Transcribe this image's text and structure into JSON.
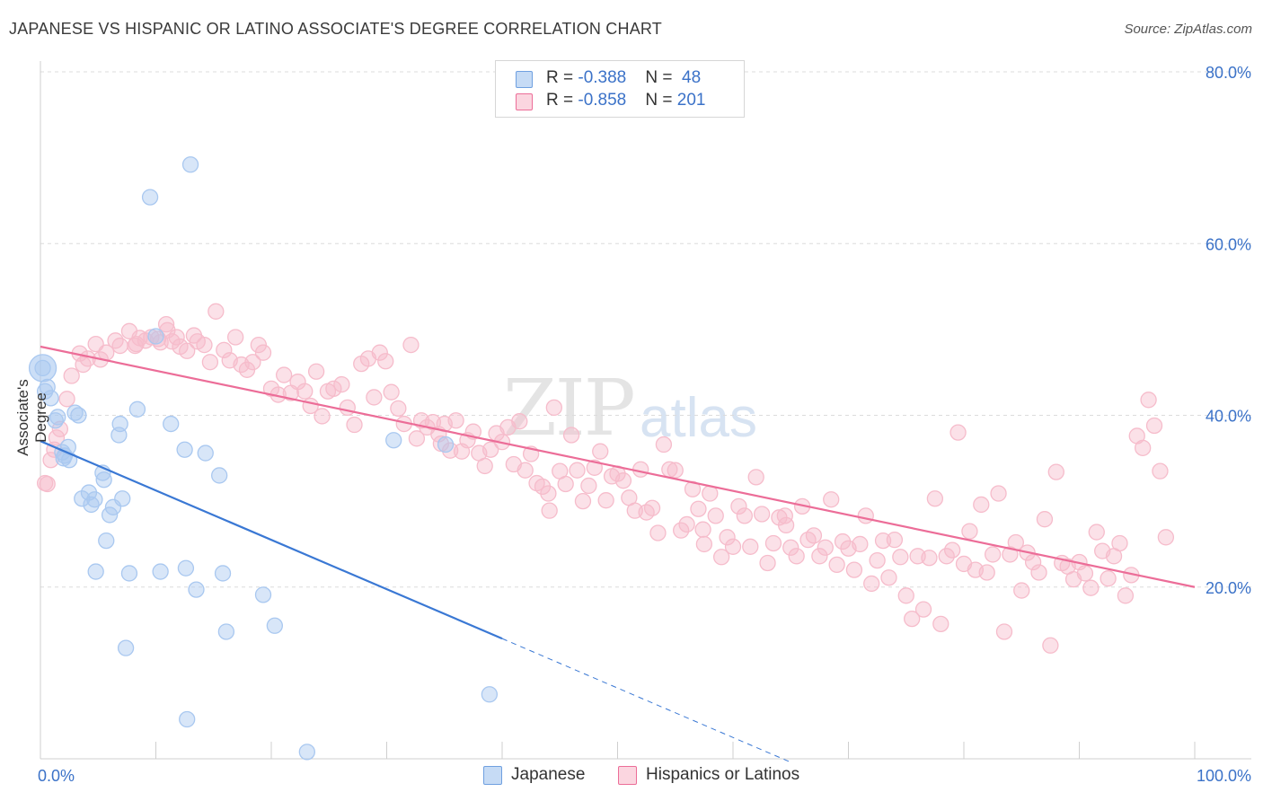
{
  "title": "JAPANESE VS HISPANIC OR LATINO ASSOCIATE'S DEGREE CORRELATION CHART",
  "source": "Source: ZipAtlas.com",
  "watermark": {
    "zip": "ZIP",
    "atlas": "atlas"
  },
  "legend_top": [
    {
      "r_label": "R = ",
      "r_value": "-0.388",
      "n_label": "N = ",
      "n_value": " 48",
      "color": "#a9c8f0"
    },
    {
      "r_label": "R = ",
      "r_value": "-0.858",
      "n_label": "N = ",
      "n_value": "201",
      "color": "#f6bccb"
    }
  ],
  "legend_bottom": [
    {
      "label": "Japanese",
      "color": "#a9c8f0"
    },
    {
      "label": "Hispanics or Latinos",
      "color": "#f6bccb"
    }
  ],
  "chart_data": {
    "type": "scatter",
    "title": "JAPANESE VS HISPANIC OR LATINO ASSOCIATE'S DEGREE CORRELATION CHART",
    "xlabel": "",
    "ylabel": "Associate's Degree",
    "xlim": [
      0,
      100
    ],
    "ylim": [
      0,
      80
    ],
    "x_tick_labels": [
      "0.0%",
      "100.0%"
    ],
    "y_ticks": [
      20,
      40,
      60,
      80
    ],
    "y_tick_labels": [
      "20.0%",
      "40.0%",
      "60.0%",
      "80.0%"
    ],
    "grid": true,
    "legend_position": "bottom",
    "series": [
      {
        "name": "Japanese",
        "color": "#6fa0e0",
        "fill": "#a9c8f0",
        "r": -0.388,
        "n": 48,
        "trend": {
          "x0": 0,
          "y0": 37.0,
          "x1": 40,
          "y1": 14.0,
          "dash_to_x": 65,
          "dash_to_y": -0.4
        },
        "points": [
          [
            0.2,
            45.5
          ],
          [
            0.6,
            43.3
          ],
          [
            0.9,
            42.0
          ],
          [
            1.3,
            39.4
          ],
          [
            1.5,
            39.8
          ],
          [
            1.9,
            35.7
          ],
          [
            2.0,
            35.0
          ],
          [
            2.4,
            36.3
          ],
          [
            2.5,
            34.8
          ],
          [
            3.3,
            40.0
          ],
          [
            3.6,
            30.3
          ],
          [
            4.2,
            31.0
          ],
          [
            4.4,
            29.6
          ],
          [
            4.7,
            30.2
          ],
          [
            4.8,
            21.8
          ],
          [
            5.4,
            33.3
          ],
          [
            5.5,
            32.5
          ],
          [
            5.7,
            25.4
          ],
          [
            6.0,
            28.4
          ],
          [
            6.8,
            37.7
          ],
          [
            6.9,
            39.0
          ],
          [
            7.1,
            30.3
          ],
          [
            7.4,
            12.9
          ],
          [
            7.7,
            21.6
          ],
          [
            8.4,
            40.7
          ],
          [
            9.5,
            65.4
          ],
          [
            10.0,
            49.2
          ],
          [
            10.4,
            21.8
          ],
          [
            11.3,
            39.0
          ],
          [
            12.5,
            36.0
          ],
          [
            12.6,
            22.2
          ],
          [
            12.7,
            4.6
          ],
          [
            13.0,
            69.2
          ],
          [
            13.5,
            19.7
          ],
          [
            14.3,
            35.6
          ],
          [
            15.5,
            33.0
          ],
          [
            15.8,
            21.6
          ],
          [
            16.1,
            14.8
          ],
          [
            19.3,
            19.1
          ],
          [
            20.3,
            15.5
          ],
          [
            23.1,
            0.8
          ],
          [
            30.6,
            37.1
          ],
          [
            35.1,
            36.6
          ],
          [
            38.9,
            7.5
          ],
          [
            0.4,
            42.8
          ],
          [
            2.1,
            35.3
          ],
          [
            3.0,
            40.3
          ],
          [
            6.3,
            29.3
          ]
        ]
      },
      {
        "name": "Hispanics or Latinos",
        "color": "#ec6d98",
        "fill": "#f6bccb",
        "r": -0.858,
        "n": 201,
        "trend": {
          "x0": 0,
          "y0": 48.0,
          "x1": 100,
          "y1": 20.0
        },
        "points": [
          [
            0.4,
            32.1
          ],
          [
            0.9,
            34.8
          ],
          [
            1.4,
            37.4
          ],
          [
            2.3,
            41.9
          ],
          [
            2.7,
            44.6
          ],
          [
            3.4,
            47.2
          ],
          [
            3.7,
            45.9
          ],
          [
            4.1,
            46.6
          ],
          [
            4.8,
            48.3
          ],
          [
            5.2,
            46.5
          ],
          [
            5.7,
            47.3
          ],
          [
            6.5,
            48.7
          ],
          [
            6.9,
            48.1
          ],
          [
            7.7,
            49.8
          ],
          [
            8.2,
            48.1
          ],
          [
            8.6,
            49.0
          ],
          [
            9.1,
            48.7
          ],
          [
            9.6,
            49.1
          ],
          [
            10.2,
            48.9
          ],
          [
            10.4,
            48.5
          ],
          [
            11.0,
            49.9
          ],
          [
            11.4,
            48.6
          ],
          [
            11.8,
            49.1
          ],
          [
            12.1,
            48.0
          ],
          [
            12.7,
            47.5
          ],
          [
            13.3,
            49.3
          ],
          [
            13.6,
            48.6
          ],
          [
            14.2,
            48.2
          ],
          [
            14.7,
            46.2
          ],
          [
            15.2,
            52.1
          ],
          [
            15.9,
            47.6
          ],
          [
            16.4,
            46.4
          ],
          [
            16.9,
            49.1
          ],
          [
            17.4,
            45.9
          ],
          [
            17.9,
            45.3
          ],
          [
            18.4,
            46.2
          ],
          [
            18.9,
            48.2
          ],
          [
            19.3,
            47.3
          ],
          [
            20.0,
            43.1
          ],
          [
            20.6,
            42.4
          ],
          [
            21.1,
            44.7
          ],
          [
            21.7,
            42.6
          ],
          [
            22.3,
            43.9
          ],
          [
            22.9,
            42.8
          ],
          [
            23.4,
            41.1
          ],
          [
            23.9,
            45.1
          ],
          [
            24.4,
            39.9
          ],
          [
            24.9,
            42.8
          ],
          [
            25.4,
            43.1
          ],
          [
            26.1,
            43.6
          ],
          [
            26.6,
            40.9
          ],
          [
            27.2,
            38.9
          ],
          [
            27.8,
            46.0
          ],
          [
            28.4,
            46.6
          ],
          [
            28.9,
            42.1
          ],
          [
            29.4,
            47.3
          ],
          [
            29.9,
            46.3
          ],
          [
            30.4,
            42.7
          ],
          [
            31.0,
            40.8
          ],
          [
            31.5,
            39.0
          ],
          [
            32.1,
            48.2
          ],
          [
            32.6,
            37.3
          ],
          [
            33.0,
            39.4
          ],
          [
            33.5,
            38.6
          ],
          [
            34.0,
            39.2
          ],
          [
            34.5,
            37.8
          ],
          [
            35.0,
            39.0
          ],
          [
            35.5,
            35.9
          ],
          [
            36.0,
            39.4
          ],
          [
            36.5,
            35.8
          ],
          [
            37.0,
            37.1
          ],
          [
            37.5,
            38.1
          ],
          [
            38.0,
            35.6
          ],
          [
            38.5,
            34.1
          ],
          [
            39.0,
            36.0
          ],
          [
            39.5,
            37.9
          ],
          [
            40.0,
            36.9
          ],
          [
            40.5,
            38.6
          ],
          [
            41.0,
            34.3
          ],
          [
            41.5,
            39.3
          ],
          [
            42.0,
            33.6
          ],
          [
            42.5,
            35.5
          ],
          [
            43.0,
            32.1
          ],
          [
            43.5,
            31.7
          ],
          [
            44.0,
            30.9
          ],
          [
            44.5,
            40.9
          ],
          [
            45.0,
            33.5
          ],
          [
            45.5,
            32.0
          ],
          [
            46.0,
            37.7
          ],
          [
            46.5,
            33.6
          ],
          [
            47.0,
            30.0
          ],
          [
            47.5,
            31.8
          ],
          [
            48.0,
            33.9
          ],
          [
            48.5,
            35.8
          ],
          [
            49.0,
            30.1
          ],
          [
            49.5,
            32.9
          ],
          [
            50.0,
            33.2
          ],
          [
            50.5,
            32.4
          ],
          [
            51.0,
            30.4
          ],
          [
            51.5,
            28.9
          ],
          [
            52.0,
            33.7
          ],
          [
            52.5,
            28.7
          ],
          [
            53.0,
            29.2
          ],
          [
            53.5,
            26.3
          ],
          [
            54.0,
            36.6
          ],
          [
            54.5,
            33.7
          ],
          [
            55.0,
            33.6
          ],
          [
            55.5,
            26.6
          ],
          [
            56.0,
            27.3
          ],
          [
            56.5,
            31.4
          ],
          [
            57.0,
            29.1
          ],
          [
            57.5,
            25.0
          ],
          [
            58.0,
            30.9
          ],
          [
            58.5,
            28.3
          ],
          [
            59.0,
            23.5
          ],
          [
            59.5,
            25.8
          ],
          [
            60.0,
            24.7
          ],
          [
            60.5,
            29.4
          ],
          [
            61.0,
            28.3
          ],
          [
            61.5,
            24.7
          ],
          [
            62.0,
            32.8
          ],
          [
            62.5,
            28.5
          ],
          [
            63.0,
            22.8
          ],
          [
            63.5,
            25.1
          ],
          [
            64.0,
            28.1
          ],
          [
            64.5,
            28.3
          ],
          [
            65.0,
            24.6
          ],
          [
            65.5,
            23.6
          ],
          [
            66.0,
            29.4
          ],
          [
            66.5,
            25.5
          ],
          [
            67.0,
            26.0
          ],
          [
            67.5,
            23.6
          ],
          [
            68.0,
            24.6
          ],
          [
            68.5,
            30.2
          ],
          [
            69.0,
            22.6
          ],
          [
            69.5,
            25.3
          ],
          [
            70.0,
            24.5
          ],
          [
            70.5,
            22.0
          ],
          [
            71.0,
            25.0
          ],
          [
            71.5,
            28.3
          ],
          [
            72.0,
            20.4
          ],
          [
            72.5,
            23.1
          ],
          [
            73.0,
            25.4
          ],
          [
            73.5,
            21.1
          ],
          [
            74.0,
            25.5
          ],
          [
            74.5,
            23.5
          ],
          [
            75.0,
            19.0
          ],
          [
            75.5,
            16.3
          ],
          [
            76.0,
            23.6
          ],
          [
            76.5,
            17.4
          ],
          [
            77.0,
            23.4
          ],
          [
            77.5,
            30.3
          ],
          [
            78.0,
            15.7
          ],
          [
            78.5,
            23.6
          ],
          [
            79.0,
            24.3
          ],
          [
            79.5,
            38.0
          ],
          [
            80.0,
            22.7
          ],
          [
            80.5,
            26.5
          ],
          [
            81.0,
            22.0
          ],
          [
            81.5,
            29.6
          ],
          [
            82.0,
            21.7
          ],
          [
            82.5,
            23.8
          ],
          [
            83.0,
            30.9
          ],
          [
            83.5,
            14.8
          ],
          [
            84.0,
            23.8
          ],
          [
            84.5,
            25.2
          ],
          [
            85.0,
            19.6
          ],
          [
            85.5,
            24.0
          ],
          [
            86.0,
            22.9
          ],
          [
            86.5,
            21.7
          ],
          [
            87.0,
            27.9
          ],
          [
            87.5,
            13.2
          ],
          [
            88.0,
            33.4
          ],
          [
            88.5,
            22.8
          ],
          [
            89.0,
            22.4
          ],
          [
            89.5,
            20.9
          ],
          [
            90.0,
            22.9
          ],
          [
            90.5,
            21.6
          ],
          [
            91.0,
            19.9
          ],
          [
            91.5,
            26.4
          ],
          [
            92.0,
            24.2
          ],
          [
            92.5,
            21.0
          ],
          [
            93.0,
            23.6
          ],
          [
            93.5,
            25.1
          ],
          [
            94.0,
            19.0
          ],
          [
            94.5,
            21.4
          ],
          [
            95.0,
            37.6
          ],
          [
            95.5,
            36.2
          ],
          [
            96.0,
            41.8
          ],
          [
            96.5,
            38.8
          ],
          [
            97.0,
            33.5
          ],
          [
            97.5,
            25.8
          ],
          [
            0.6,
            32.0
          ],
          [
            1.7,
            38.4
          ],
          [
            10.9,
            50.6
          ],
          [
            8.3,
            48.3
          ],
          [
            64.6,
            27.2
          ],
          [
            44.1,
            28.9
          ],
          [
            57.4,
            26.7
          ],
          [
            34.7,
            36.7
          ],
          [
            1.2,
            36.0
          ]
        ]
      }
    ]
  }
}
